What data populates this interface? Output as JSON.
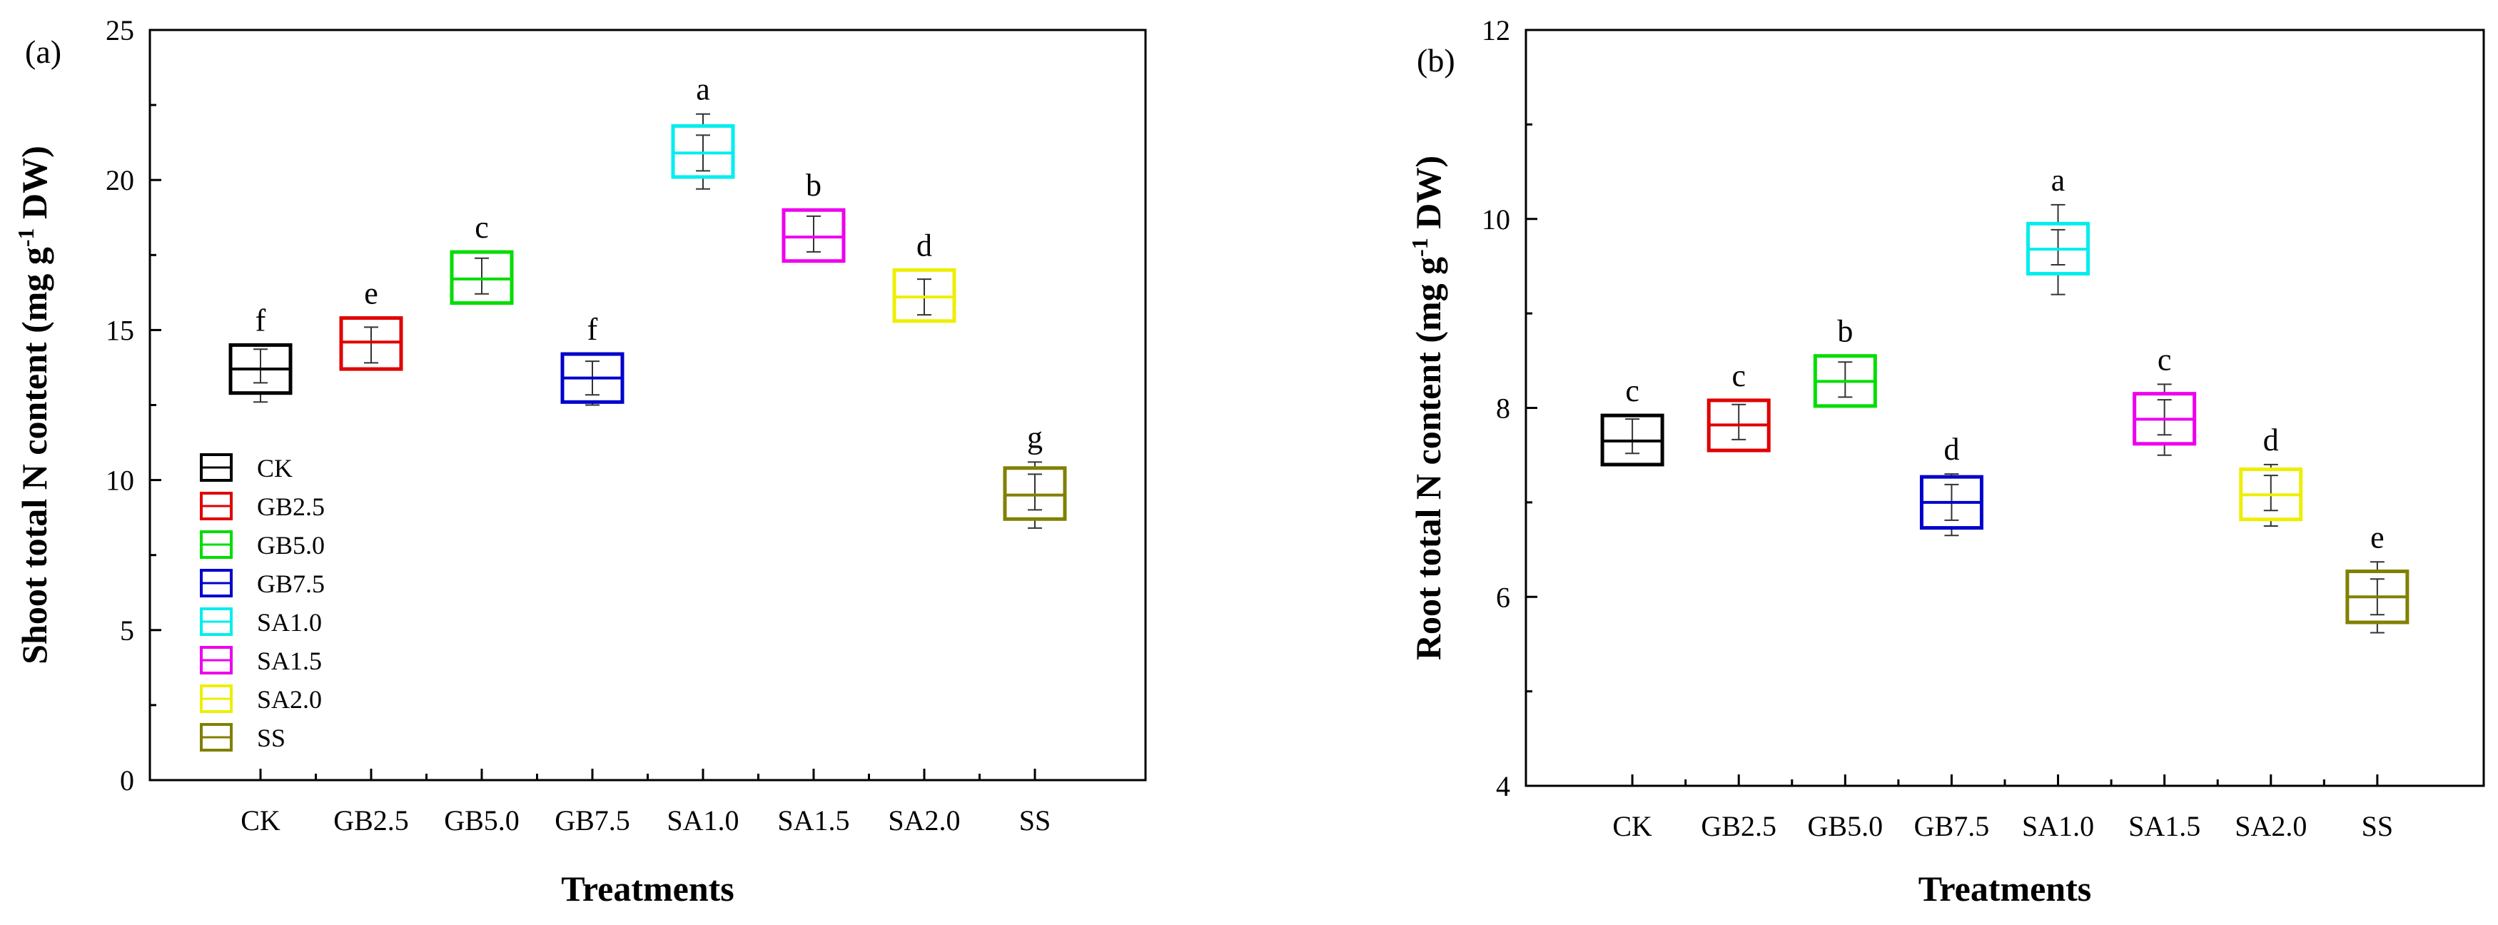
{
  "chart_data": [
    {
      "panel": "(a)",
      "type": "box",
      "title": "",
      "xlabel": "Treatments",
      "ylabel_parts": [
        "Shoot total N content (mg g",
        "-1",
        "DW)"
      ],
      "ylim": [
        0,
        25
      ],
      "yticks": [
        0,
        5,
        10,
        15,
        20,
        25
      ],
      "categories": [
        "CK",
        "GB2.5",
        "GB5.0",
        "GB7.5",
        "SA1.0",
        "SA1.5",
        "SA2.0",
        "SS"
      ],
      "colors": [
        "#000000",
        "#e00000",
        "#00dd00",
        "#0000cc",
        "#00eeee",
        "#ee00ee",
        "#eeee00",
        "#808000"
      ],
      "boxes": [
        {
          "q1": 12.9,
          "median": 13.7,
          "q3": 14.5,
          "whisker_low": 12.6,
          "whisker_high": 14.5,
          "mean": 13.8,
          "letter": "f"
        },
        {
          "q1": 13.7,
          "median": 14.6,
          "q3": 15.4,
          "whisker_low": 13.7,
          "whisker_high": 15.4,
          "mean": 14.5,
          "letter": "e"
        },
        {
          "q1": 15.9,
          "median": 16.7,
          "q3": 17.6,
          "whisker_low": 15.9,
          "whisker_high": 17.6,
          "mean": 16.8,
          "letter": "c"
        },
        {
          "q1": 12.6,
          "median": 13.4,
          "q3": 14.2,
          "whisker_low": 12.5,
          "whisker_high": 14.2,
          "mean": 13.4,
          "letter": "f"
        },
        {
          "q1": 20.1,
          "median": 20.9,
          "q3": 21.8,
          "whisker_low": 19.7,
          "whisker_high": 22.2,
          "mean": 20.9,
          "letter": "a"
        },
        {
          "q1": 17.3,
          "median": 18.1,
          "q3": 19.0,
          "whisker_low": 17.3,
          "whisker_high": 19.0,
          "mean": 18.2,
          "letter": "b"
        },
        {
          "q1": 15.3,
          "median": 16.1,
          "q3": 17.0,
          "whisker_low": 15.3,
          "whisker_high": 17.0,
          "mean": 16.1,
          "letter": "d"
        },
        {
          "q1": 8.7,
          "median": 9.5,
          "q3": 10.4,
          "whisker_low": 8.4,
          "whisker_high": 10.6,
          "mean": 9.6,
          "letter": "g"
        }
      ],
      "legend": {
        "placement": "lower-left",
        "entries": [
          "CK",
          "GB2.5",
          "GB5.0",
          "GB7.5",
          "SA1.0",
          "SA1.5",
          "SA2.0",
          "SS"
        ]
      }
    },
    {
      "panel": "(b)",
      "type": "box",
      "title": "",
      "xlabel": "Treatments",
      "ylabel_parts": [
        "Root total N content (mg g",
        "-1",
        "DW)"
      ],
      "ylim": [
        4,
        12
      ],
      "yticks": [
        4,
        6,
        8,
        10,
        12
      ],
      "categories": [
        "CK",
        "GB2.5",
        "GB5.0",
        "GB7.5",
        "SA1.0",
        "SA1.5",
        "SA2.0",
        "SS"
      ],
      "colors": [
        "#000000",
        "#e00000",
        "#00dd00",
        "#0000cc",
        "#00eeee",
        "#ee00ee",
        "#eeee00",
        "#808000"
      ],
      "boxes": [
        {
          "q1": 7.4,
          "median": 7.65,
          "q3": 7.92,
          "whisker_low": 7.4,
          "whisker_high": 7.92,
          "mean": 7.7,
          "letter": "c"
        },
        {
          "q1": 7.55,
          "median": 7.82,
          "q3": 8.08,
          "whisker_low": 7.55,
          "whisker_high": 8.08,
          "mean": 7.85,
          "letter": "c"
        },
        {
          "q1": 8.02,
          "median": 8.28,
          "q3": 8.55,
          "whisker_low": 8.02,
          "whisker_high": 8.55,
          "mean": 8.3,
          "letter": "b"
        },
        {
          "q1": 6.73,
          "median": 7.0,
          "q3": 7.27,
          "whisker_low": 6.65,
          "whisker_high": 7.3,
          "mean": 7.0,
          "letter": "d"
        },
        {
          "q1": 9.42,
          "median": 9.68,
          "q3": 9.95,
          "whisker_low": 9.2,
          "whisker_high": 10.15,
          "mean": 9.7,
          "letter": "a"
        },
        {
          "q1": 7.62,
          "median": 7.88,
          "q3": 8.15,
          "whisker_low": 7.5,
          "whisker_high": 8.25,
          "mean": 7.9,
          "letter": "c"
        },
        {
          "q1": 6.82,
          "median": 7.08,
          "q3": 7.35,
          "whisker_low": 6.75,
          "whisker_high": 7.4,
          "mean": 7.1,
          "letter": "d"
        },
        {
          "q1": 5.73,
          "median": 6.0,
          "q3": 6.27,
          "whisker_low": 5.62,
          "whisker_high": 6.37,
          "mean": 6.0,
          "letter": "e"
        }
      ]
    }
  ]
}
